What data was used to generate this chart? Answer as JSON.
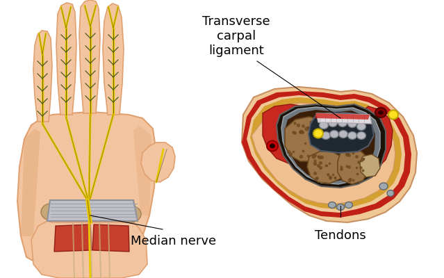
{
  "background_color": "#ffffff",
  "labels": {
    "transverse_carpal": "Transverse\ncarpal\nligament",
    "median_nerve": "Median nerve",
    "tendons": "Tendons"
  },
  "font_size_labels": 13,
  "hand": {
    "skin_light": "#F2C5A0",
    "skin_mid": "#E0A070",
    "skin_dark": "#C07848"
  },
  "cross": {
    "outer_skin": "#F0C090",
    "fat_yellow": "#D4A030",
    "red_muscle": "#C83020",
    "bone_brown": "#8B6030",
    "tunnel_dark": "#1A0A00",
    "tendon_gray": "#B8B8C0",
    "nerve_yellow": "#FFE000"
  }
}
